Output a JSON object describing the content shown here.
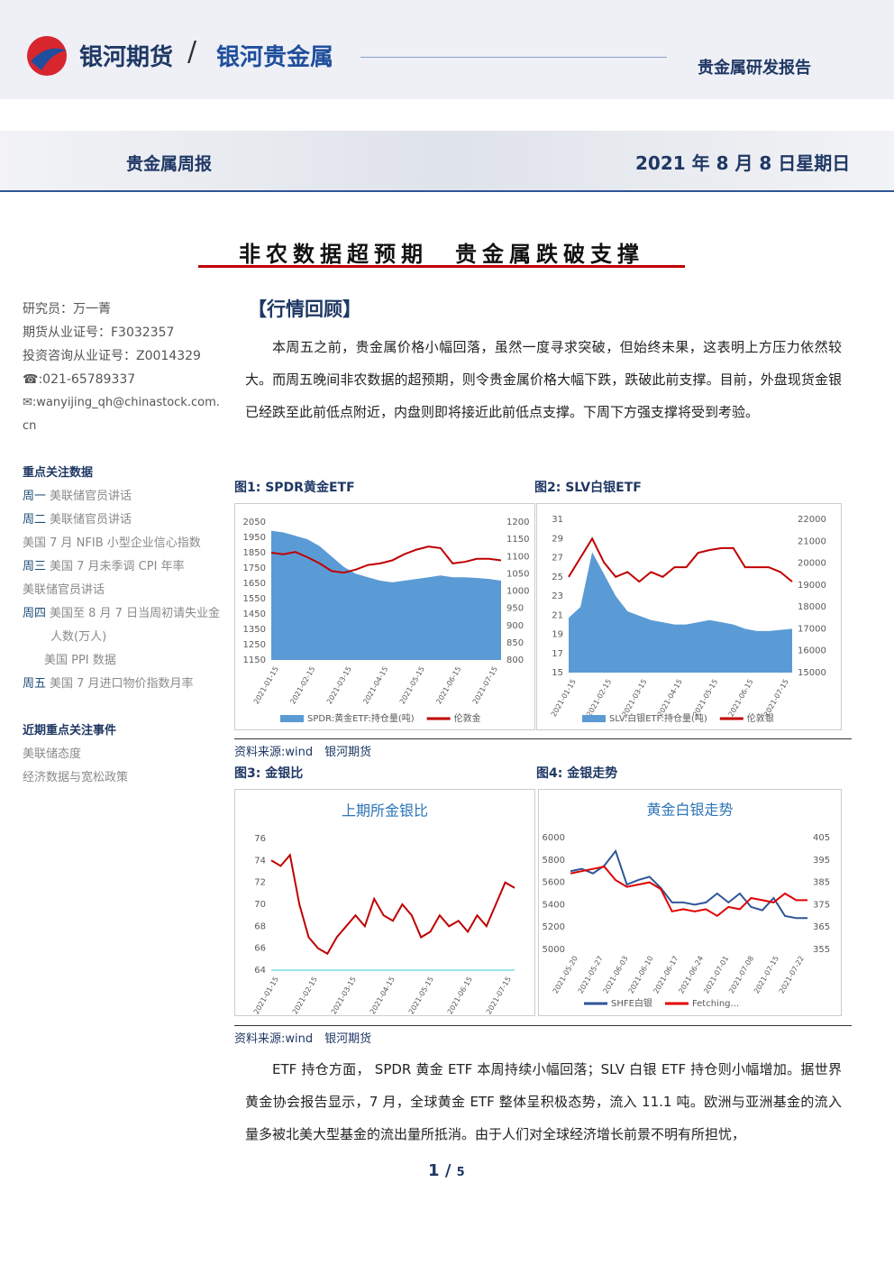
{
  "header": {
    "brand": "银河期货",
    "sub_brand": "银河贵金属",
    "report_type": "贵金属研发报告",
    "series": "贵金属周报",
    "date": "2021 年 8 月 8 日星期日"
  },
  "title": "非农数据超预期　贵金属跌破支撑",
  "sidebar": {
    "contact": [
      "研究员：万一菁",
      "期货从业证号：F3032357",
      "投资咨询从业证号：Z0014329",
      "021-65789337",
      "wanyijing_qh@chinastock.com.cn"
    ],
    "focus_title": "重点关注数据",
    "focus": [
      {
        "day": "周一",
        "text": "美联储官员讲话"
      },
      {
        "day": "周二",
        "text": "美联储官员讲话"
      },
      {
        "text": "美国 7 月 NFIB 小型企业信心指数"
      },
      {
        "day": "周三",
        "text": "美国 7 月未季调 CPI 年率"
      },
      {
        "text": "美联储官员讲话"
      },
      {
        "day": "周四",
        "text": "美国至 8 月 7 日当周初请失业金人数(万人)"
      },
      {
        "text": "美国 PPI 数据"
      },
      {
        "day": "周五",
        "text": "美国 7 月进口物价指数月率"
      }
    ],
    "events_title": "近期重点关注事件",
    "events": [
      "美联储态度",
      "经济数据与宽松政策"
    ]
  },
  "section": "【行情回顾】",
  "paragraphs": [
    "本周五之前，贵金属价格小幅回落，虽然一度寻求突破，但始终未果，这表明上方压力依然较大。而周五晚间非农数据的超预期，则令贵金属价格大幅下跌，跌破此前支撑。目前，外盘现货金银已经跌至此前低点附近，内盘则即将接近此前低点支撑。下周下方强支撑将受到考验。",
    "ETF 持仓方面， SPDR 黄金 ETF 本周持续小幅回落；SLV 白银 ETF 持仓则小幅增加。据世界黄金协会报告显示，7 月，全球黄金 ETF 整体呈积极态势，流入 11.1 吨。欧洲与亚洲基金的流入量多被北美大型基金的流出量所抵消。由于人们对全球经济增长前景不明有所担忧，"
  ],
  "figure_titles": [
    "图1: SPDR黄金ETF",
    "图2: SLV白银ETF",
    "图3: 金银比",
    "图4: 金银走势"
  ],
  "source": [
    "资料来源:wind　银河期货",
    "资料来源:wind　银河期货"
  ],
  "page": {
    "current": "1",
    "separator": "/",
    "total": "5"
  },
  "chart_data": [
    {
      "type": "line",
      "grid": false,
      "xtick_labels": [
        "2021-01-15",
        "2021-02-15",
        "2021-03-15",
        "2021-04-15",
        "2021-05-15",
        "2021-06-15",
        "2021-07-15"
      ],
      "ylim": [
        1150,
        2050
      ],
      "yticks": [
        1150,
        1250,
        1350,
        1450,
        1550,
        1650,
        1750,
        1850,
        1950,
        2050
      ],
      "y2lim": [
        800,
        1200
      ],
      "y2ticks": [
        800,
        850,
        900,
        950,
        1000,
        1050,
        1100,
        1150,
        1200
      ],
      "series": [
        {
          "name": "SPDR:黄金ETF:持仓量(吨)",
          "type": "area",
          "axis": "y2",
          "color": "#5b9bd5",
          "values": [
            1175,
            1170,
            1160,
            1150,
            1130,
            1100,
            1070,
            1050,
            1040,
            1030,
            1025,
            1030,
            1035,
            1040,
            1045,
            1040,
            1040,
            1038,
            1035,
            1030
          ]
        },
        {
          "name": "伦敦金",
          "type": "line",
          "color": "#c00000",
          "values": [
            1850,
            1840,
            1855,
            1820,
            1780,
            1730,
            1720,
            1740,
            1770,
            1780,
            1800,
            1840,
            1870,
            1890,
            1880,
            1780,
            1790,
            1810,
            1810,
            1800
          ]
        }
      ]
    },
    {
      "type": "line",
      "grid": false,
      "xtick_labels": [
        "2021-01-15",
        "2021-02-15",
        "2021-03-15",
        "2021-04-15",
        "2021-05-15",
        "2021-06-15",
        "2021-07-15"
      ],
      "ylim": [
        15,
        31
      ],
      "yticks": [
        15,
        17,
        19,
        21,
        23,
        25,
        27,
        29,
        31
      ],
      "y2lim": [
        15000,
        22000
      ],
      "y2ticks": [
        15000,
        16000,
        17000,
        18000,
        19000,
        20000,
        21000,
        22000
      ],
      "series": [
        {
          "name": "SLV:白银ETF:持仓量(吨)",
          "type": "area",
          "axis": "y2",
          "color": "#5b9bd5",
          "values": [
            17500,
            18000,
            20500,
            19500,
            18500,
            17800,
            17600,
            17400,
            17300,
            17200,
            17200,
            17300,
            17400,
            17300,
            17200,
            17000,
            16900,
            16900,
            16950,
            17000
          ]
        },
        {
          "name": "伦敦银",
          "type": "line",
          "color": "#c00000",
          "values": [
            25,
            27,
            29,
            26.5,
            25,
            25.5,
            24.5,
            25.5,
            25,
            26,
            26,
            27.5,
            27.8,
            28,
            28,
            26,
            26,
            26,
            25.5,
            24.5
          ]
        }
      ]
    },
    {
      "type": "line",
      "grid": false,
      "title": "上期所金银比",
      "xtick_labels": [
        "2021-01-15",
        "2021-02-15",
        "2021-03-15",
        "2021-04-15",
        "2021-05-15",
        "2021-06-15",
        "2021-07-15"
      ],
      "ylim": [
        64,
        76
      ],
      "yticks": [
        64,
        66,
        68,
        70,
        72,
        74,
        76
      ],
      "series": [
        {
          "type": "line",
          "color": "#c00000",
          "values": [
            74,
            73.5,
            74.5,
            70,
            67,
            66,
            65.5,
            67,
            68,
            69,
            68,
            70.5,
            69,
            68.5,
            70,
            69,
            67,
            67.5,
            69,
            68,
            68.5,
            67.5,
            69,
            68,
            70,
            72,
            71.5
          ]
        }
      ]
    },
    {
      "type": "line",
      "grid": false,
      "title": "黄金白银走势",
      "xtick_labels": [
        "2021-05-20",
        "2021-05-27",
        "2021-06-03",
        "2021-06-10",
        "2021-06-17",
        "2021-06-24",
        "2021-07-01",
        "2021-07-08",
        "2021-07-15",
        "2021-07-22"
      ],
      "ylim": [
        5000,
        6000
      ],
      "yticks": [
        5000,
        5200,
        5400,
        5600,
        5800,
        6000
      ],
      "y2lim": [
        355,
        405
      ],
      "y2ticks": [
        355,
        365,
        375,
        385,
        395,
        405
      ],
      "series": [
        {
          "name": "SHFE白银",
          "type": "line",
          "color": "#2f5597",
          "values": [
            5700,
            5720,
            5680,
            5750,
            5880,
            5580,
            5620,
            5650,
            5550,
            5420,
            5420,
            5400,
            5420,
            5500,
            5420,
            5500,
            5380,
            5350,
            5460,
            5300,
            5280,
            5280
          ]
        },
        {
          "name": "Fetching...",
          "type": "line",
          "axis": "y2",
          "color": "#e00000",
          "values": [
            389,
            390,
            391,
            392,
            386,
            383,
            384,
            385,
            382,
            372,
            373,
            372,
            373,
            370,
            374,
            373,
            378,
            377,
            376,
            380,
            377,
            377
          ]
        }
      ]
    }
  ]
}
